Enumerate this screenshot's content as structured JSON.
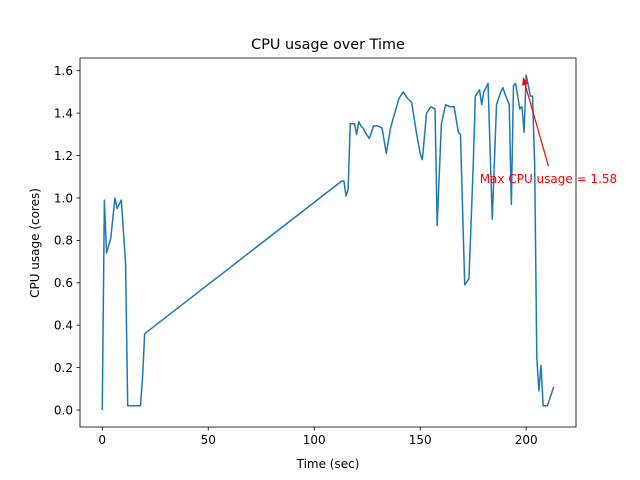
{
  "chart_data": {
    "type": "line",
    "title": "CPU usage over Time",
    "xlabel": "Time (sec)",
    "ylabel": "CPU usage (cores)",
    "xlim": [
      -10.5,
      223.5
    ],
    "ylim": [
      -0.08,
      1.66
    ],
    "xticks": [
      0,
      50,
      100,
      150,
      200
    ],
    "xtick_labels": [
      "0",
      "50",
      "100",
      "150",
      "200"
    ],
    "yticks": [
      0.0,
      0.2,
      0.4,
      0.6,
      0.8,
      1.0,
      1.2,
      1.4,
      1.6
    ],
    "ytick_labels": [
      "0.0",
      "0.2",
      "0.4",
      "0.6",
      "0.8",
      "1.0",
      "1.2",
      "1.4",
      "1.6"
    ],
    "grid": false,
    "series_color": "#1f77b4",
    "annotation_color": "#ff0000",
    "annotation": {
      "text": "Max CPU usage = 1.58",
      "point": [
        198.5,
        1.57
      ],
      "text_anchor_point": [
        210.5,
        1.15
      ]
    },
    "series": [
      {
        "x": [
          0,
          1,
          2,
          4,
          6,
          7,
          9,
          11,
          12,
          14,
          16,
          18,
          19,
          20,
          113,
          114,
          115,
          116,
          117,
          118,
          119,
          120,
          121,
          122,
          123,
          124,
          126,
          128,
          130,
          132,
          134,
          136,
          138,
          140,
          142,
          144,
          146,
          148,
          150,
          151,
          153,
          155,
          157,
          158,
          160,
          162,
          164,
          165,
          166,
          168,
          169,
          171,
          173,
          175,
          176,
          178,
          179,
          180,
          182,
          184,
          186,
          188,
          189,
          190,
          192,
          193,
          194,
          195,
          197,
          198,
          199,
          200,
          201,
          202,
          203,
          204,
          205,
          206,
          207,
          208,
          210,
          211,
          213
        ],
        "y": [
          0.0,
          0.99,
          0.74,
          0.81,
          1.0,
          0.95,
          0.99,
          0.69,
          0.02,
          0.02,
          0.02,
          0.02,
          0.15,
          0.36,
          1.08,
          1.08,
          1.01,
          1.04,
          1.35,
          1.35,
          1.35,
          1.3,
          1.36,
          1.34,
          1.33,
          1.31,
          1.28,
          1.34,
          1.34,
          1.33,
          1.21,
          1.33,
          1.4,
          1.47,
          1.5,
          1.47,
          1.45,
          1.32,
          1.21,
          1.18,
          1.4,
          1.43,
          1.42,
          0.87,
          1.35,
          1.44,
          1.43,
          1.43,
          1.43,
          1.31,
          1.3,
          0.59,
          0.62,
          1.15,
          1.48,
          1.51,
          1.44,
          1.5,
          1.54,
          0.9,
          1.44,
          1.5,
          1.52,
          1.49,
          1.44,
          0.97,
          1.53,
          1.54,
          1.42,
          1.43,
          1.31,
          1.58,
          1.53,
          1.48,
          1.48,
          1.16,
          0.25,
          0.09,
          0.21,
          0.02,
          0.02,
          0.05,
          0.11
        ]
      }
    ]
  }
}
